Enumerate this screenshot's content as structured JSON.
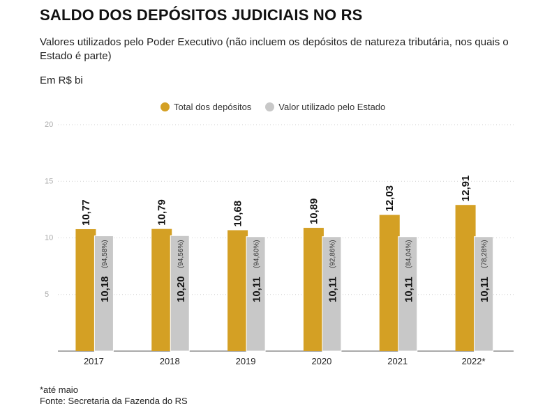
{
  "header": {
    "title": "SALDO DOS DEPÓSITOS JUDICIAIS NO RS",
    "subtitle": "Valores utilizados pelo Poder Executivo (não incluem os depósitos de natureza tributária, nos quais o Estado é parte)",
    "unit": "Em R$ bi"
  },
  "legend": [
    {
      "label": "Total dos depósitos",
      "color": "#d4a024"
    },
    {
      "label": "Valor utilizado pelo Estado",
      "color": "#c8c8c8"
    }
  ],
  "footer": {
    "note": "*até maio",
    "source": "Fonte: Secretaria da Fazenda do RS"
  },
  "chart_data": {
    "type": "bar",
    "categories": [
      "2017",
      "2018",
      "2019",
      "2020",
      "2021",
      "2022*"
    ],
    "series": [
      {
        "name": "Total dos depósitos",
        "color": "#d4a024",
        "values": [
          10.77,
          10.79,
          10.68,
          10.89,
          12.03,
          12.91
        ],
        "labels": [
          "10,77",
          "10,79",
          "10,68",
          "10,89",
          "12,03",
          "12,91"
        ]
      },
      {
        "name": "Valor utilizado pelo Estado",
        "color": "#c8c8c8",
        "values": [
          10.18,
          10.2,
          10.11,
          10.11,
          10.11,
          10.11
        ],
        "labels": [
          "10,18",
          "10,20",
          "10,11",
          "10,11",
          "10,11",
          "10,11"
        ],
        "percent_labels": [
          "(94,58%)",
          "(94,56%)",
          "(94,60%)",
          "(92,86%)",
          "(84,04%)",
          "(78,28%)"
        ]
      }
    ],
    "ylim": [
      0,
      20
    ],
    "yticks": [
      5,
      10,
      15,
      20
    ],
    "grid": true,
    "legend_position": "top"
  }
}
